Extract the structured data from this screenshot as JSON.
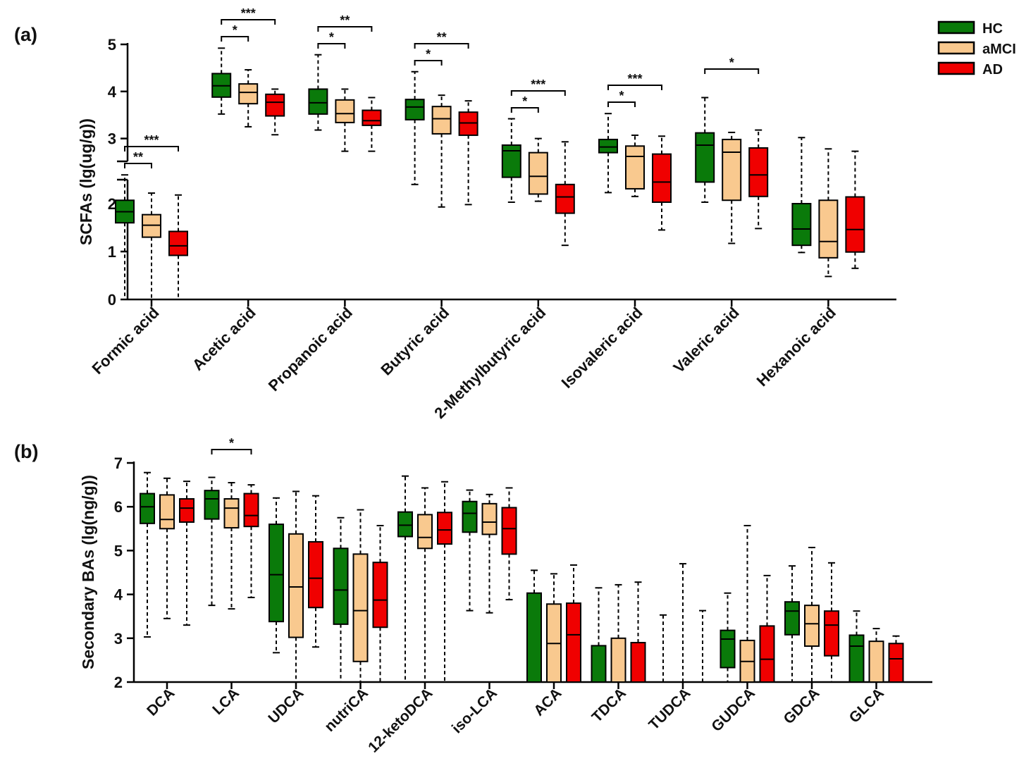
{
  "legend": [
    {
      "name": "HC",
      "color": "#0a7a0a"
    },
    {
      "name": "aMCI",
      "color": "#f9c98f"
    },
    {
      "name": "AD",
      "color": "#f00000"
    }
  ],
  "chart_data": [
    {
      "type": "box",
      "panel_label": "(a)",
      "ylabel": "SCFAs (lg(ug/g))",
      "yticks": [
        "0",
        "1",
        "2",
        "3",
        "4",
        "5"
      ],
      "axis_break": true,
      "categories": [
        "Formic acid",
        "Acetic acid",
        "Propanoic acid",
        "Butyric acid",
        "2-Methylbutyric acid",
        "Isovaleric acid",
        "Valeric acid",
        "Hexanoic acid"
      ],
      "series": [
        "HC",
        "aMCI",
        "AD"
      ],
      "boxes": [
        [
          [
            0,
            1.6,
            1.83,
            2.07,
            2.6
          ],
          [
            0,
            1.3,
            1.55,
            1.77,
            2.22
          ],
          [
            0,
            0.92,
            1.12,
            1.42,
            2.18
          ]
        ],
        [
          [
            3.52,
            3.88,
            4.12,
            4.38,
            4.92
          ],
          [
            3.25,
            3.74,
            3.98,
            4.16,
            4.46
          ],
          [
            3.08,
            3.48,
            3.77,
            3.94,
            4.05
          ]
        ],
        [
          [
            3.18,
            3.52,
            3.76,
            4.05,
            4.78
          ],
          [
            2.73,
            3.34,
            3.53,
            3.82,
            4.05
          ],
          [
            2.73,
            3.28,
            3.38,
            3.6,
            3.87
          ]
        ],
        [
          [
            2.4,
            3.4,
            3.67,
            3.83,
            4.42
          ],
          [
            1.93,
            3.1,
            3.42,
            3.68,
            3.92
          ],
          [
            1.98,
            3.07,
            3.33,
            3.56,
            3.8
          ]
        ],
        [
          [
            2.03,
            2.55,
            2.74,
            2.86,
            3.42
          ],
          [
            2.05,
            2.2,
            2.57,
            2.7,
            3.0
          ],
          [
            1.13,
            1.8,
            2.14,
            2.4,
            2.93
          ]
        ],
        [
          [
            2.23,
            2.7,
            2.82,
            2.98,
            3.53
          ],
          [
            2.15,
            2.31,
            2.62,
            2.84,
            3.07
          ],
          [
            1.45,
            2.03,
            2.45,
            2.67,
            3.05
          ]
        ],
        [
          [
            2.03,
            2.45,
            2.86,
            3.12,
            3.87
          ],
          [
            1.17,
            2.07,
            2.71,
            2.98,
            3.13
          ],
          [
            1.48,
            2.15,
            2.6,
            2.8,
            3.18
          ]
        ],
        [
          [
            0.98,
            1.13,
            1.47,
            2.0,
            3.02
          ],
          [
            0.48,
            0.87,
            1.21,
            2.07,
            2.78
          ],
          [
            0.65,
            0.99,
            1.46,
            2.14,
            2.73
          ]
        ]
      ],
      "significance": [
        {
          "category": "Formic acid",
          "pair": [
            "HC",
            "aMCI"
          ],
          "label": "**"
        },
        {
          "category": "Formic acid",
          "pair": [
            "HC",
            "AD"
          ],
          "label": "***"
        },
        {
          "category": "Acetic acid",
          "pair": [
            "HC",
            "aMCI"
          ],
          "label": "*"
        },
        {
          "category": "Acetic acid",
          "pair": [
            "HC",
            "AD"
          ],
          "label": "***"
        },
        {
          "category": "Propanoic acid",
          "pair": [
            "HC",
            "aMCI"
          ],
          "label": "*"
        },
        {
          "category": "Propanoic acid",
          "pair": [
            "HC",
            "AD"
          ],
          "label": "**"
        },
        {
          "category": "Butyric acid",
          "pair": [
            "HC",
            "aMCI"
          ],
          "label": "*"
        },
        {
          "category": "Butyric acid",
          "pair": [
            "HC",
            "AD"
          ],
          "label": "**"
        },
        {
          "category": "2-Methylbutyric acid",
          "pair": [
            "HC",
            "aMCI"
          ],
          "label": "*"
        },
        {
          "category": "2-Methylbutyric acid",
          "pair": [
            "HC",
            "AD"
          ],
          "label": "***"
        },
        {
          "category": "Isovaleric acid",
          "pair": [
            "HC",
            "aMCI"
          ],
          "label": "*"
        },
        {
          "category": "Isovaleric acid",
          "pair": [
            "HC",
            "AD"
          ],
          "label": "***"
        },
        {
          "category": "Valeric acid",
          "pair": [
            "HC",
            "AD"
          ],
          "label": "*"
        }
      ]
    },
    {
      "type": "box",
      "panel_label": "(b)",
      "ylabel": "Secondary BAs (lg(ng/g))",
      "yticks": [
        "2",
        "3",
        "4",
        "5",
        "6",
        "7"
      ],
      "ylim": [
        2,
        7
      ],
      "categories": [
        "DCA",
        "LCA",
        "UDCA",
        "nutriCA",
        "12-ketoDCA",
        "iso-LCA",
        "ACA",
        "TDCA",
        "TUDCA",
        "GUDCA",
        "GDCA",
        "GLCA"
      ],
      "series": [
        "HC",
        "aMCI",
        "AD"
      ],
      "boxes": [
        [
          [
            3.03,
            5.62,
            6.0,
            6.3,
            6.78
          ],
          [
            3.45,
            5.5,
            5.71,
            6.27,
            6.65
          ],
          [
            3.3,
            5.65,
            5.97,
            6.18,
            6.58
          ]
        ],
        [
          [
            3.75,
            5.72,
            6.18,
            6.37,
            6.67
          ],
          [
            3.67,
            5.52,
            5.97,
            6.18,
            6.55
          ],
          [
            3.93,
            5.55,
            5.8,
            6.3,
            6.5
          ]
        ],
        [
          [
            2.67,
            3.38,
            4.45,
            5.6,
            6.2
          ],
          [
            2.0,
            3.02,
            4.17,
            5.38,
            6.35
          ],
          [
            2.8,
            3.7,
            4.37,
            5.2,
            6.25
          ]
        ],
        [
          [
            2.0,
            3.32,
            4.1,
            5.05,
            5.75
          ],
          [
            2.0,
            2.47,
            3.63,
            4.92,
            5.93
          ],
          [
            2.0,
            3.25,
            3.87,
            4.73,
            5.57
          ]
        ],
        [
          [
            2.0,
            5.32,
            5.58,
            5.88,
            6.7
          ],
          [
            2.0,
            5.05,
            5.3,
            5.82,
            6.43
          ],
          [
            2.0,
            5.15,
            5.47,
            5.87,
            6.57
          ]
        ],
        [
          [
            3.63,
            5.42,
            5.85,
            6.12,
            6.38
          ],
          [
            3.58,
            5.37,
            5.65,
            6.07,
            6.28
          ],
          [
            3.88,
            4.92,
            5.5,
            5.98,
            6.43
          ]
        ],
        [
          [
            2.0,
            2.0,
            2.0,
            4.03,
            4.55
          ],
          [
            2.0,
            2.0,
            2.88,
            3.78,
            4.47
          ],
          [
            2.0,
            2.0,
            3.08,
            3.8,
            4.67
          ]
        ],
        [
          [
            2.0,
            2.0,
            2.0,
            2.83,
            4.15
          ],
          [
            2.0,
            2.0,
            2.0,
            3.0,
            4.22
          ],
          [
            2.0,
            2.0,
            2.0,
            2.9,
            4.28
          ]
        ],
        [
          [
            2.0,
            2.0,
            2.0,
            2.0,
            3.53
          ],
          [
            2.0,
            2.0,
            2.0,
            2.0,
            4.7
          ],
          [
            2.0,
            2.0,
            2.0,
            2.0,
            3.63
          ]
        ],
        [
          [
            2.0,
            2.33,
            2.98,
            3.18,
            4.03
          ],
          [
            2.0,
            2.0,
            2.47,
            2.95,
            5.57
          ],
          [
            2.0,
            2.0,
            2.52,
            3.28,
            4.43
          ]
        ],
        [
          [
            2.0,
            3.08,
            3.62,
            3.83,
            4.65
          ],
          [
            2.0,
            2.82,
            3.33,
            3.75,
            5.07
          ],
          [
            2.0,
            2.6,
            3.3,
            3.62,
            4.72
          ]
        ],
        [
          [
            2.0,
            2.0,
            2.82,
            3.07,
            3.62
          ],
          [
            2.0,
            2.0,
            2.0,
            2.93,
            3.22
          ],
          [
            2.0,
            2.0,
            2.53,
            2.88,
            3.05
          ]
        ]
      ],
      "significance": [
        {
          "category": "LCA",
          "pair": [
            "HC",
            "AD"
          ],
          "label": "*"
        }
      ]
    }
  ]
}
